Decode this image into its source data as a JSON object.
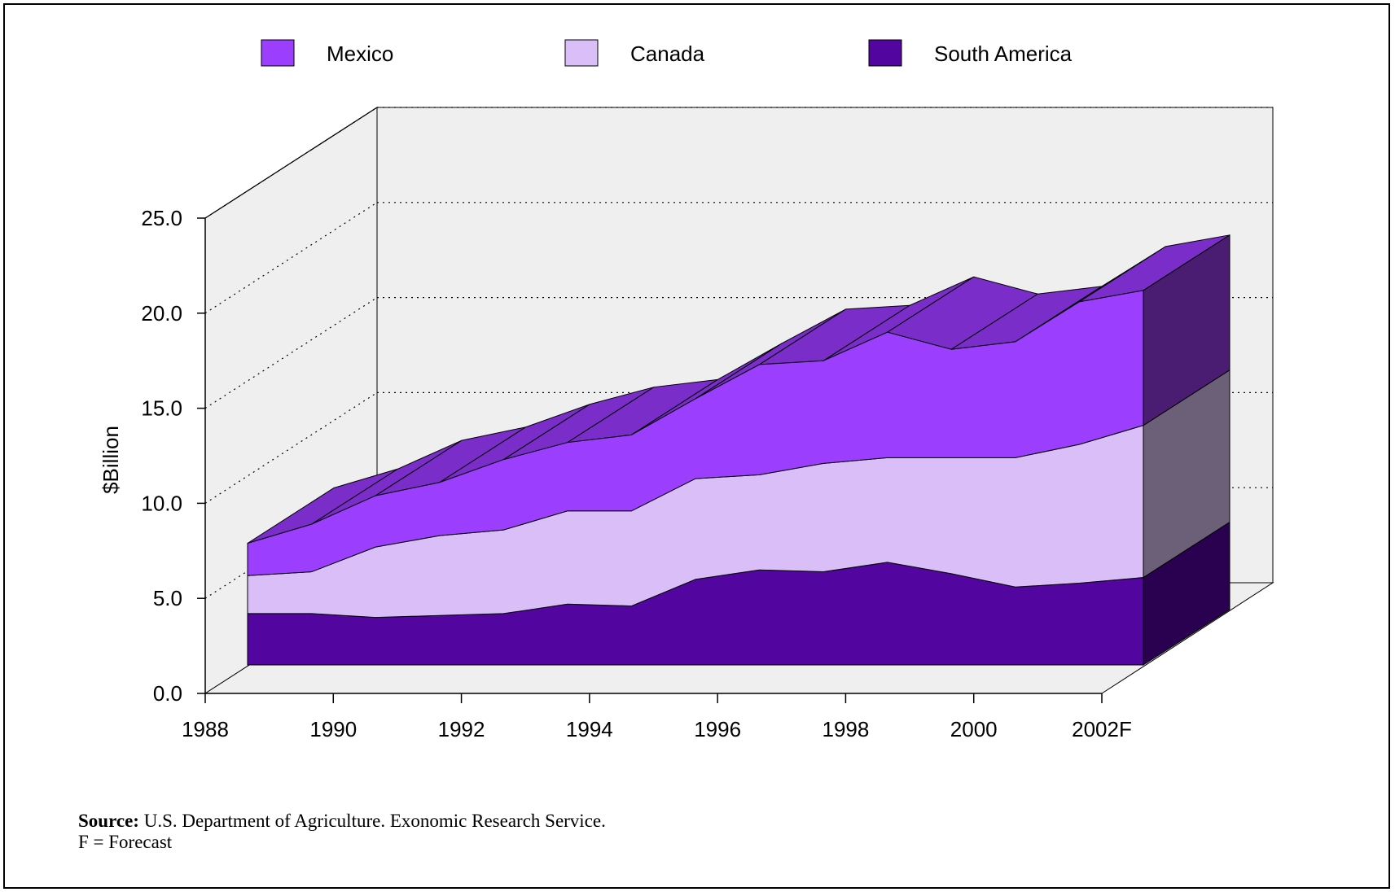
{
  "chart_data": {
    "type": "area",
    "stacked": true,
    "three_d": true,
    "categories": [
      "1988",
      "1989",
      "1990",
      "1991",
      "1992",
      "1993",
      "1994",
      "1995",
      "1996",
      "1997",
      "1998",
      "1999",
      "2000",
      "2001",
      "2002F"
    ],
    "x_tick_labels": [
      "1988",
      "1990",
      "1992",
      "1994",
      "1996",
      "1998",
      "2000",
      "2002F"
    ],
    "y_tick_labels": [
      "0.0",
      "5.0",
      "10.0",
      "15.0",
      "20.0",
      "25.0"
    ],
    "ylim": [
      0,
      25
    ],
    "ylabel": "$Billion",
    "xlabel": "",
    "grid": "horizontal dotted",
    "legend_position": "top",
    "series": [
      {
        "name": "South America",
        "color": "#53059f",
        "top_color": "#4a1573",
        "side_color": "#2a0050",
        "values": [
          2.7,
          2.7,
          2.5,
          2.6,
          2.7,
          3.2,
          3.1,
          4.5,
          5.0,
          4.9,
          5.4,
          4.8,
          4.1,
          4.3,
          4.6
        ]
      },
      {
        "name": "Canada",
        "color": "#d9bef7",
        "top_color": "#d9bef7",
        "side_color": "#6c5f78",
        "values": [
          2.0,
          2.2,
          3.7,
          4.2,
          4.4,
          4.9,
          5.0,
          5.3,
          5.0,
          5.7,
          5.5,
          6.1,
          6.8,
          7.3,
          8.0
        ]
      },
      {
        "name": "Mexico",
        "color": "#9b3efd",
        "top_color": "#7a2dc9",
        "side_color": "#4a1d73",
        "values": [
          1.7,
          2.5,
          2.7,
          2.8,
          3.7,
          3.6,
          4.0,
          4.2,
          5.8,
          5.4,
          6.6,
          5.7,
          6.1,
          7.5,
          7.1
        ]
      }
    ]
  },
  "legend": [
    {
      "name": "Mexico",
      "color": "#9b3efd"
    },
    {
      "name": "Canada",
      "color": "#d9bef7"
    },
    {
      "name": "South America",
      "color": "#53059f"
    }
  ],
  "footnote": {
    "source_label": "Source:",
    "source_text": " U.S. Department of Agriculture.  Exonomic Research Service.",
    "forecast_note": "F = Forecast"
  }
}
